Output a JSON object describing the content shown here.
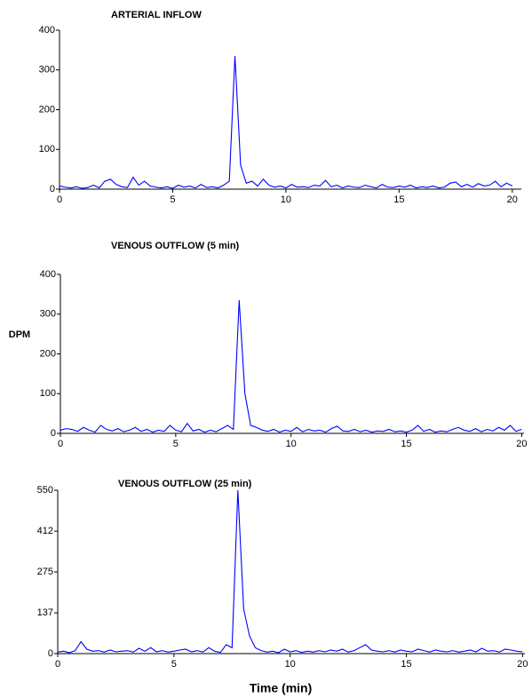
{
  "chart_data": [
    {
      "type": "line",
      "title": "ARTERIAL INFLOW",
      "color": "#0000ff",
      "x": [
        0,
        0.25,
        0.5,
        0.75,
        1,
        1.25,
        1.5,
        1.75,
        2,
        2.25,
        2.5,
        2.75,
        3,
        3.25,
        3.5,
        3.75,
        4,
        4.25,
        4.5,
        4.75,
        5,
        5.25,
        5.5,
        5.75,
        6,
        6.25,
        6.5,
        6.75,
        7,
        7.25,
        7.5,
        7.75,
        8,
        8.25,
        8.5,
        8.75,
        9,
        9.25,
        9.5,
        9.75,
        10,
        10.25,
        10.5,
        10.75,
        11,
        11.25,
        11.5,
        11.75,
        12,
        12.25,
        12.5,
        12.75,
        13,
        13.25,
        13.5,
        13.75,
        14,
        14.25,
        14.5,
        14.75,
        15,
        15.25,
        15.5,
        15.75,
        16,
        16.25,
        16.5,
        16.75,
        17,
        17.25,
        17.5,
        17.75,
        18,
        18.25,
        18.5,
        18.75,
        19,
        19.25,
        19.5,
        19.75,
        20
      ],
      "values": [
        8,
        5,
        3,
        6,
        2,
        4,
        10,
        3,
        20,
        25,
        12,
        6,
        4,
        30,
        10,
        20,
        8,
        5,
        3,
        6,
        2,
        10,
        5,
        8,
        3,
        12,
        4,
        6,
        3,
        10,
        20,
        335,
        60,
        15,
        20,
        8,
        25,
        10,
        5,
        8,
        3,
        12,
        5,
        6,
        4,
        10,
        8,
        22,
        6,
        10,
        3,
        8,
        5,
        4,
        10,
        6,
        3,
        12,
        5,
        4,
        8,
        5,
        10,
        3,
        6,
        4,
        8,
        3,
        5,
        15,
        18,
        6,
        12,
        5,
        14,
        8,
        10,
        20,
        6,
        15,
        8
      ],
      "xlim": [
        0,
        20.4
      ],
      "xticks": [
        0,
        5,
        10,
        15,
        20
      ],
      "ylim": [
        0,
        400
      ],
      "yticks": [
        0,
        100,
        200,
        300,
        400
      ]
    },
    {
      "type": "line",
      "title": "VENOUS OUTFLOW (5 min)",
      "ylabel": "DPM",
      "color": "#0000ff",
      "x": [
        0,
        0.25,
        0.5,
        0.75,
        1,
        1.25,
        1.5,
        1.75,
        2,
        2.25,
        2.5,
        2.75,
        3,
        3.25,
        3.5,
        3.75,
        4,
        4.25,
        4.5,
        4.75,
        5,
        5.25,
        5.5,
        5.75,
        6,
        6.25,
        6.5,
        6.75,
        7,
        7.25,
        7.5,
        7.75,
        8,
        8.25,
        8.5,
        8.75,
        9,
        9.25,
        9.5,
        9.75,
        10,
        10.25,
        10.5,
        10.75,
        11,
        11.25,
        11.5,
        11.75,
        12,
        12.25,
        12.5,
        12.75,
        13,
        13.25,
        13.5,
        13.75,
        14,
        14.25,
        14.5,
        14.75,
        15,
        15.25,
        15.5,
        15.75,
        16,
        16.25,
        16.5,
        16.75,
        17,
        17.25,
        17.5,
        17.75,
        18,
        18.25,
        18.5,
        18.75,
        19,
        19.25,
        19.5,
        19.75,
        20
      ],
      "values": [
        8,
        12,
        10,
        5,
        15,
        8,
        3,
        20,
        10,
        6,
        12,
        4,
        8,
        15,
        5,
        10,
        3,
        8,
        5,
        20,
        8,
        4,
        25,
        6,
        10,
        3,
        8,
        4,
        12,
        20,
        10,
        335,
        100,
        20,
        15,
        8,
        5,
        10,
        3,
        8,
        5,
        15,
        4,
        10,
        6,
        8,
        3,
        12,
        18,
        6,
        5,
        10,
        4,
        8,
        3,
        6,
        5,
        10,
        4,
        6,
        3,
        8,
        20,
        5,
        10,
        3,
        6,
        4,
        10,
        15,
        8,
        5,
        12,
        4,
        10,
        6,
        15,
        8,
        20,
        5,
        10
      ],
      "xlim": [
        0,
        20.1
      ],
      "xticks": [
        0,
        5,
        10,
        15,
        20
      ],
      "ylim": [
        0,
        400
      ],
      "yticks": [
        0,
        100,
        200,
        300,
        400
      ]
    },
    {
      "type": "line",
      "title": "VENOUS OUTFLOW (25 min)",
      "xlabel": "Time (min)",
      "color": "#0000ff",
      "x": [
        0,
        0.25,
        0.5,
        0.75,
        1,
        1.25,
        1.5,
        1.75,
        2,
        2.25,
        2.5,
        2.75,
        3,
        3.25,
        3.5,
        3.75,
        4,
        4.25,
        4.5,
        4.75,
        5,
        5.25,
        5.5,
        5.75,
        6,
        6.25,
        6.5,
        6.75,
        7,
        7.25,
        7.5,
        7.75,
        8,
        8.25,
        8.5,
        8.75,
        9,
        9.25,
        9.5,
        9.75,
        10,
        10.25,
        10.5,
        10.75,
        11,
        11.25,
        11.5,
        11.75,
        12,
        12.25,
        12.5,
        12.75,
        13,
        13.25,
        13.5,
        13.75,
        14,
        14.25,
        14.5,
        14.75,
        15,
        15.25,
        15.5,
        15.75,
        16,
        16.25,
        16.5,
        16.75,
        17,
        17.25,
        17.5,
        17.75,
        18,
        18.25,
        18.5,
        18.75,
        19,
        19.25,
        19.5,
        19.75,
        20
      ],
      "values": [
        5,
        8,
        3,
        10,
        40,
        15,
        8,
        10,
        5,
        12,
        6,
        8,
        10,
        5,
        18,
        8,
        20,
        6,
        10,
        5,
        8,
        12,
        15,
        6,
        10,
        5,
        20,
        8,
        4,
        30,
        20,
        550,
        150,
        60,
        20,
        10,
        5,
        8,
        3,
        15,
        6,
        10,
        4,
        8,
        5,
        10,
        6,
        12,
        8,
        15,
        5,
        10,
        20,
        30,
        12,
        8,
        6,
        10,
        5,
        12,
        8,
        6,
        15,
        10,
        5,
        12,
        8,
        6,
        10,
        5,
        8,
        12,
        6,
        18,
        8,
        10,
        5,
        15,
        12,
        8,
        6
      ],
      "xlim": [
        0,
        20.1
      ],
      "xticks": [
        0,
        5,
        10,
        15,
        20
      ],
      "ylim": [
        0,
        550
      ],
      "yticks": [
        0,
        137,
        275,
        412,
        550
      ]
    }
  ]
}
